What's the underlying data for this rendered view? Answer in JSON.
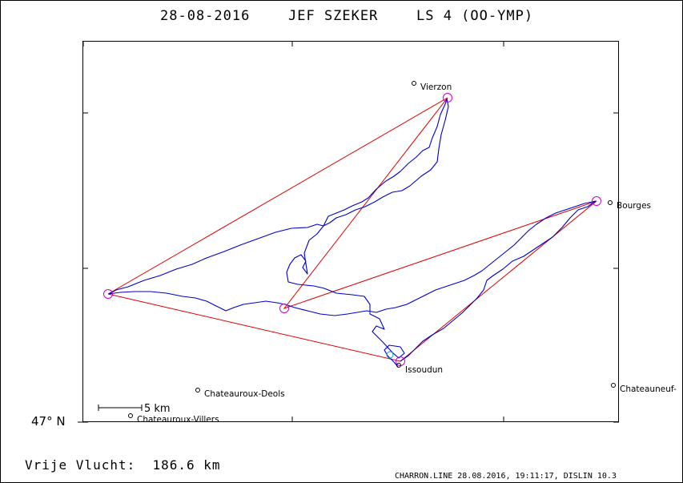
{
  "header": {
    "date": "28-08-2016",
    "pilot": "JEF SZEKER",
    "glider": "LS 4 (OO-YMP)"
  },
  "map": {
    "latitude_label": "47° N",
    "scale_label": "5 km",
    "places": [
      {
        "name": "Vierzon"
      },
      {
        "name": "Bourges"
      },
      {
        "name": "Issoudun"
      },
      {
        "name": "Chateauroux-Deols"
      },
      {
        "name": "Chateauroux-Villers"
      },
      {
        "name": "Chateauneuf-"
      }
    ],
    "colors": {
      "track": "#0000cc",
      "task": "#dd0000",
      "turnpoint": "#cc00cc",
      "start": "#00aaaa",
      "frame": "#000000"
    }
  },
  "footer": {
    "distance_text": "Vrije Vlucht:  186.6 km",
    "credit": "CHARRON.LINE 28.08.2016, 19:11:17, DISLIN 10.3"
  }
}
